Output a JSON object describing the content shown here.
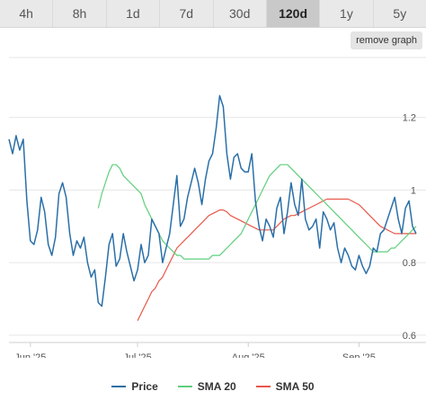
{
  "tabs": [
    "4h",
    "8h",
    "1d",
    "7d",
    "30d",
    "120d",
    "1y",
    "5y"
  ],
  "active_tab": "120d",
  "remove_graph_label": "remove graph",
  "legend": [
    {
      "label": "Price",
      "color": "#2a6fa8"
    },
    {
      "label": "SMA 20",
      "color": "#5fcf7d"
    },
    {
      "label": "SMA 50",
      "color": "#e8584a"
    }
  ],
  "chart_data": {
    "type": "line",
    "x_ticks": [
      "Jun '25",
      "Jul '25",
      "Aug '25",
      "Sep '25"
    ],
    "x_tick_index": [
      6,
      36,
      67,
      98
    ],
    "y_ticks": [
      0.6,
      0.8,
      1,
      1.2
    ],
    "y_tick_labels": [
      "0.6",
      "0.8",
      "1",
      "1.2"
    ],
    "ylim": [
      0.58,
      1.38
    ],
    "grid": true,
    "series": [
      {
        "name": "Price",
        "color": "#2a6fa8",
        "values": [
          1.14,
          1.1,
          1.15,
          1.11,
          1.14,
          0.97,
          0.86,
          0.85,
          0.89,
          0.98,
          0.94,
          0.85,
          0.82,
          0.87,
          0.99,
          1.02,
          0.98,
          0.88,
          0.82,
          0.86,
          0.84,
          0.87,
          0.8,
          0.76,
          0.78,
          0.69,
          0.68,
          0.76,
          0.85,
          0.88,
          0.79,
          0.81,
          0.88,
          0.83,
          0.79,
          0.75,
          0.78,
          0.85,
          0.8,
          0.82,
          0.92,
          0.9,
          0.88,
          0.8,
          0.84,
          0.88,
          0.96,
          1.04,
          0.9,
          0.92,
          0.98,
          1.02,
          1.06,
          1.02,
          0.96,
          1.03,
          1.08,
          1.1,
          1.17,
          1.26,
          1.23,
          1.1,
          1.03,
          1.09,
          1.1,
          1.06,
          1.05,
          1.05,
          1.1,
          0.97,
          0.9,
          0.86,
          0.92,
          0.9,
          0.87,
          0.95,
          0.98,
          0.88,
          0.94,
          1.02,
          0.96,
          0.93,
          1.03,
          0.92,
          0.89,
          0.9,
          0.92,
          0.84,
          0.94,
          0.92,
          0.89,
          0.91,
          0.84,
          0.8,
          0.84,
          0.82,
          0.79,
          0.78,
          0.82,
          0.79,
          0.77,
          0.79,
          0.84,
          0.83,
          0.88,
          0.89,
          0.92,
          0.95,
          0.98,
          0.92,
          0.88,
          0.95,
          0.97,
          0.9,
          0.88
        ]
      },
      {
        "name": "SMA 20",
        "color": "#5fcf7d",
        "values": [
          0.95,
          0.99,
          1.02,
          1.05,
          1.07,
          1.07,
          1.06,
          1.04,
          1.03,
          1.02,
          1.01,
          1.0,
          0.99,
          0.96,
          0.94,
          0.92,
          0.9,
          0.88,
          0.86,
          0.85,
          0.84,
          0.83,
          0.82,
          0.82,
          0.81,
          0.81,
          0.81,
          0.81,
          0.81,
          0.81,
          0.81,
          0.81,
          0.82,
          0.82,
          0.82,
          0.83,
          0.84,
          0.85,
          0.86,
          0.87,
          0.88,
          0.9,
          0.92,
          0.94,
          0.96,
          0.98,
          1.0,
          1.02,
          1.04,
          1.05,
          1.06,
          1.07,
          1.07,
          1.07,
          1.06,
          1.05,
          1.04,
          1.03,
          1.02,
          1.01,
          1.0,
          0.99,
          0.98,
          0.97,
          0.96,
          0.95,
          0.94,
          0.93,
          0.92,
          0.91,
          0.9,
          0.89,
          0.88,
          0.87,
          0.86,
          0.85,
          0.84,
          0.83,
          0.83,
          0.83,
          0.83,
          0.83,
          0.84,
          0.84,
          0.85,
          0.86,
          0.87,
          0.88,
          0.89,
          0.9
        ]
      },
      {
        "name": "SMA 50",
        "color": "#e8584a",
        "values": [
          0.64,
          0.66,
          0.68,
          0.7,
          0.72,
          0.73,
          0.75,
          0.76,
          0.78,
          0.8,
          0.82,
          0.84,
          0.85,
          0.86,
          0.87,
          0.88,
          0.89,
          0.9,
          0.91,
          0.92,
          0.93,
          0.935,
          0.94,
          0.945,
          0.945,
          0.94,
          0.93,
          0.925,
          0.92,
          0.915,
          0.91,
          0.905,
          0.9,
          0.895,
          0.89,
          0.89,
          0.89,
          0.89,
          0.89,
          0.9,
          0.91,
          0.92,
          0.925,
          0.93,
          0.93,
          0.935,
          0.94,
          0.945,
          0.95,
          0.955,
          0.96,
          0.965,
          0.97,
          0.975,
          0.975,
          0.975,
          0.975,
          0.975,
          0.975,
          0.975,
          0.97,
          0.965,
          0.96,
          0.95,
          0.94,
          0.93,
          0.92,
          0.91,
          0.9,
          0.895,
          0.89,
          0.885,
          0.88,
          0.88,
          0.88,
          0.88,
          0.88,
          0.88,
          0.88
        ]
      }
    ]
  }
}
